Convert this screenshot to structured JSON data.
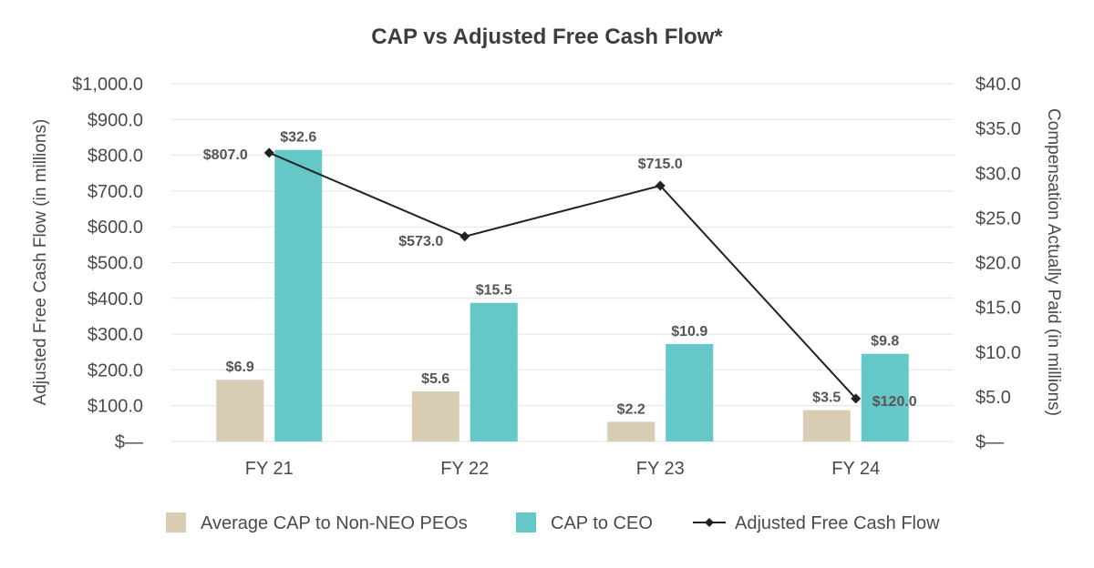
{
  "chart_data": {
    "type": "bar",
    "title": "CAP vs Adjusted Free Cash Flow*",
    "categories": [
      "FY 21",
      "FY 22",
      "FY 23",
      "FY 24"
    ],
    "left_axis": {
      "label": "Adjusted Free Cash Flow (in millions)",
      "range": [
        0,
        1000
      ],
      "ticks": [
        "$—",
        "$100.0",
        "$200.0",
        "$300.0",
        "$400.0",
        "$500.0",
        "$600.0",
        "$700.0",
        "$800.0",
        "$900.0",
        "$1,000.0"
      ]
    },
    "right_axis": {
      "label": "Compensation Actually Paid (in millions)",
      "range": [
        0,
        40
      ],
      "ticks": [
        "$—",
        "$5.0",
        "$10.0",
        "$15.0",
        "$20.0",
        "$25.0",
        "$30.0",
        "$35.0",
        "$40.0"
      ]
    },
    "series": [
      {
        "name": "Average CAP to Non-NEO PEOs",
        "kind": "bar",
        "axis": "right",
        "color": "#d9ccb4",
        "values": [
          6.9,
          5.6,
          2.2,
          3.5
        ],
        "labels": [
          "$6.9",
          "$5.6",
          "$2.2",
          "$3.5"
        ]
      },
      {
        "name": "CAP to CEO",
        "kind": "bar",
        "axis": "right",
        "color": "#66c7c9",
        "values": [
          32.6,
          15.5,
          10.9,
          9.8
        ],
        "labels": [
          "$32.6",
          "$15.5",
          "$10.9",
          "$9.8"
        ]
      },
      {
        "name": "Adjusted Free Cash Flow",
        "kind": "line",
        "axis": "left",
        "color": "#222222",
        "values": [
          807.0,
          573.0,
          715.0,
          120.0
        ],
        "labels": [
          "$807.0",
          "$573.0",
          "$715.0",
          "$120.0"
        ]
      }
    ],
    "legend_position": "bottom",
    "grid": true
  }
}
